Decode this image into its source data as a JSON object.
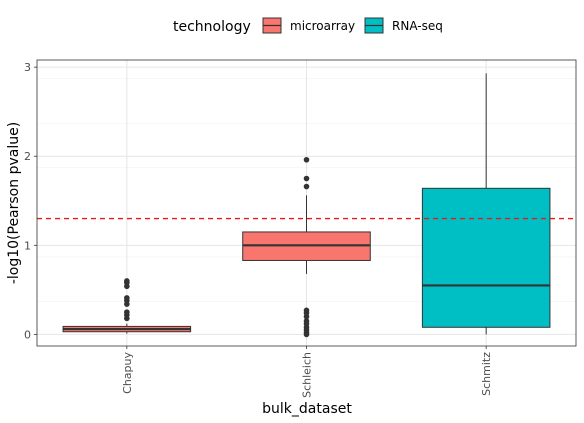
{
  "chart_data": {
    "type": "box",
    "xlabel": "bulk_dataset",
    "ylabel": "-log10(Pearson pvalue)",
    "ylim": [
      -0.13,
      3.08
    ],
    "yticks": [
      0,
      1,
      2,
      3
    ],
    "categories": [
      "Chapuy",
      "Schleich",
      "Schmitz"
    ],
    "reference_line": {
      "y": 1.3,
      "style": "dashed",
      "color": "#e41a1c"
    },
    "grid": true,
    "legend": {
      "title": "technology",
      "position": "top",
      "entries": [
        {
          "label": "microarray",
          "color": "#f8766d"
        },
        {
          "label": "RNA-seq",
          "color": "#00bfc4"
        }
      ]
    },
    "series": [
      {
        "category": "Chapuy",
        "technology": "microarray",
        "color": "#f8766d",
        "min": 0.01,
        "q1": 0.03,
        "median": 0.06,
        "q3": 0.09,
        "max": 0.12,
        "outliers": [
          0.18,
          0.22,
          0.25,
          0.34,
          0.38,
          0.41,
          0.54,
          0.58,
          0.6
        ]
      },
      {
        "category": "Schleich",
        "technology": "microarray",
        "color": "#f8766d",
        "min": 0.68,
        "q1": 0.83,
        "median": 1.0,
        "q3": 1.15,
        "max": 1.56,
        "outliers": [
          0.0,
          0.02,
          0.05,
          0.08,
          0.12,
          0.15,
          0.2,
          0.24,
          0.27,
          1.66,
          1.75,
          1.96
        ]
      },
      {
        "category": "Schmitz",
        "technology": "RNA-seq",
        "color": "#00bfc4",
        "min": 0.0,
        "q1": 0.08,
        "median": 0.55,
        "q3": 1.64,
        "max": 2.93,
        "outliers": []
      }
    ]
  }
}
